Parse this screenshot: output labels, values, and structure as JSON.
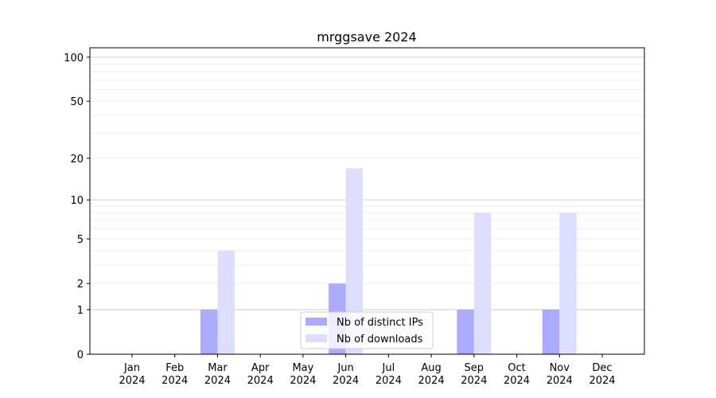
{
  "chart_data": {
    "type": "bar",
    "title": "mrggsave 2024",
    "xlabel": "",
    "ylabel": "",
    "y_scale": "log(1+y)",
    "ylim": [
      0,
      116
    ],
    "y_ticks": [
      0,
      1,
      2,
      5,
      10,
      20,
      50,
      100
    ],
    "grid": true,
    "legend_position": "lower-center",
    "categories": [
      "Jan\n2024",
      "Feb\n2024",
      "Mar\n2024",
      "Apr\n2024",
      "May\n2024",
      "Jun\n2024",
      "Jul\n2024",
      "Aug\n2024",
      "Sep\n2024",
      "Oct\n2024",
      "Nov\n2024",
      "Dec\n2024"
    ],
    "series": [
      {
        "name": "Nb of distinct IPs",
        "color": "#aaaaff",
        "values": [
          0,
          0,
          1,
          0,
          0,
          2,
          0,
          0,
          1,
          0,
          1,
          0
        ]
      },
      {
        "name": "Nb of downloads",
        "color": "#ddddff",
        "values": [
          0,
          0,
          4,
          0,
          0,
          17,
          0,
          0,
          8,
          0,
          8,
          0
        ]
      }
    ]
  }
}
